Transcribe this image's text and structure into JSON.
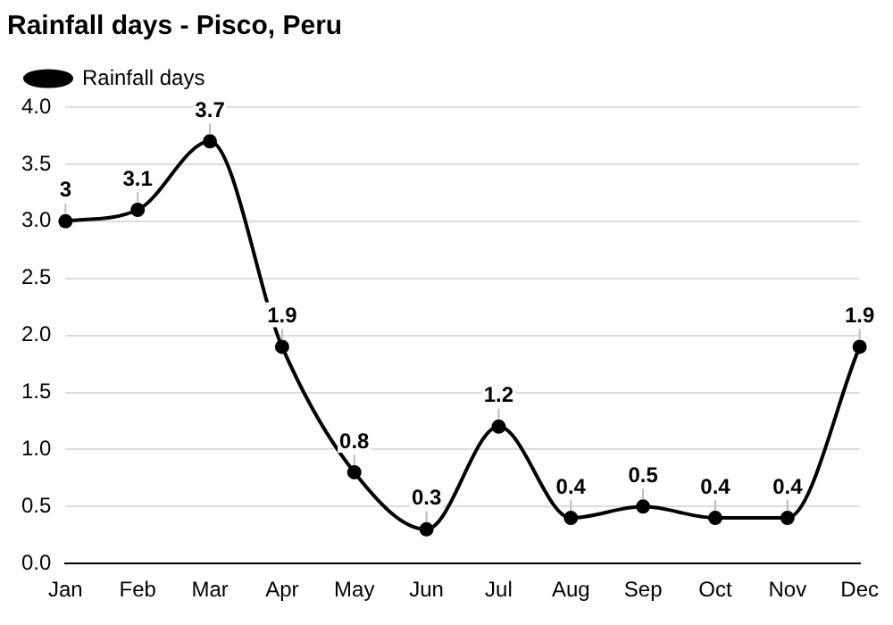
{
  "chart_data": {
    "type": "line",
    "title": "Rainfall days - Pisco, Peru",
    "categories": [
      "Jan",
      "Feb",
      "Mar",
      "Apr",
      "May",
      "Jun",
      "Jul",
      "Aug",
      "Sep",
      "Oct",
      "Nov",
      "Dec"
    ],
    "series": [
      {
        "name": "Rainfall days",
        "color": "#000000",
        "values": [
          3,
          3.1,
          3.7,
          1.9,
          0.8,
          0.3,
          1.2,
          0.4,
          0.5,
          0.4,
          0.4,
          1.9
        ]
      }
    ],
    "ylim": [
      0,
      4
    ],
    "yticks": [
      {
        "value": 0,
        "label": "0.0"
      },
      {
        "value": 0.5,
        "label": "0.5"
      },
      {
        "value": 1,
        "label": "1.0"
      },
      {
        "value": 1.5,
        "label": "1.5"
      },
      {
        "value": 2,
        "label": "2.0"
      },
      {
        "value": 2.5,
        "label": "2.5"
      },
      {
        "value": 3,
        "label": "3.0"
      },
      {
        "value": 3.5,
        "label": "3.5"
      },
      {
        "value": 4,
        "label": "4.0"
      }
    ],
    "grid": "y",
    "legend": "top left",
    "marker": "circle",
    "line_style": "solid",
    "data_labels": true
  }
}
